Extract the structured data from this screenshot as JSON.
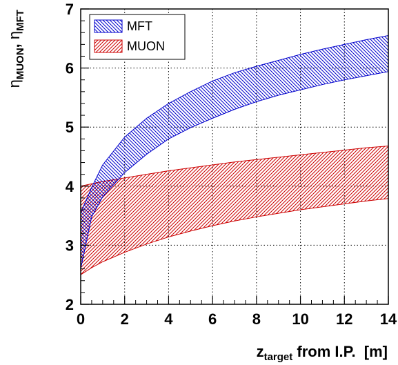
{
  "chart_data": {
    "type": "area",
    "xlabel": {
      "main": "z",
      "sub": "target",
      "rest": " from I.P.  [m]"
    },
    "ylabel": {
      "eta1": "η",
      "sub1": "MUON",
      "sep": ", ",
      "eta2": "η",
      "sub2": "MFT"
    },
    "xlim": [
      0,
      14
    ],
    "ylim": [
      2,
      7
    ],
    "x_ticks": [
      "0",
      "2",
      "4",
      "6",
      "8",
      "10",
      "12",
      "14"
    ],
    "y_ticks": [
      "2",
      "3",
      "4",
      "5",
      "6",
      "7"
    ],
    "grid": true,
    "legend_position": "top-left",
    "series": [
      {
        "name": "MFT",
        "color": "#0000cc",
        "fill": "hatch-backslash",
        "x": [
          0,
          0.5,
          1,
          2,
          3,
          4,
          5,
          6,
          7,
          8,
          9,
          10,
          11,
          12,
          13,
          14
        ],
        "upper": [
          3.55,
          3.98,
          4.36,
          4.83,
          5.15,
          5.4,
          5.6,
          5.78,
          5.92,
          6.03,
          6.13,
          6.23,
          6.32,
          6.4,
          6.48,
          6.55
        ],
        "lower": [
          2.6,
          3.48,
          3.82,
          4.23,
          4.54,
          4.8,
          4.99,
          5.15,
          5.3,
          5.43,
          5.54,
          5.63,
          5.72,
          5.8,
          5.87,
          5.94
        ]
      },
      {
        "name": "MUON",
        "color": "#cc0000",
        "fill": "hatch-slash",
        "x": [
          0,
          0.5,
          1,
          2,
          3,
          4,
          5,
          6,
          7,
          8,
          9,
          10,
          11,
          12,
          13,
          14
        ],
        "upper": [
          4.0,
          4.04,
          4.08,
          4.14,
          4.2,
          4.26,
          4.31,
          4.36,
          4.41,
          4.45,
          4.49,
          4.53,
          4.57,
          4.61,
          4.65,
          4.68
        ],
        "lower": [
          2.5,
          2.62,
          2.72,
          2.88,
          3.02,
          3.14,
          3.24,
          3.33,
          3.41,
          3.48,
          3.54,
          3.6,
          3.65,
          3.7,
          3.75,
          3.79
        ]
      }
    ]
  }
}
